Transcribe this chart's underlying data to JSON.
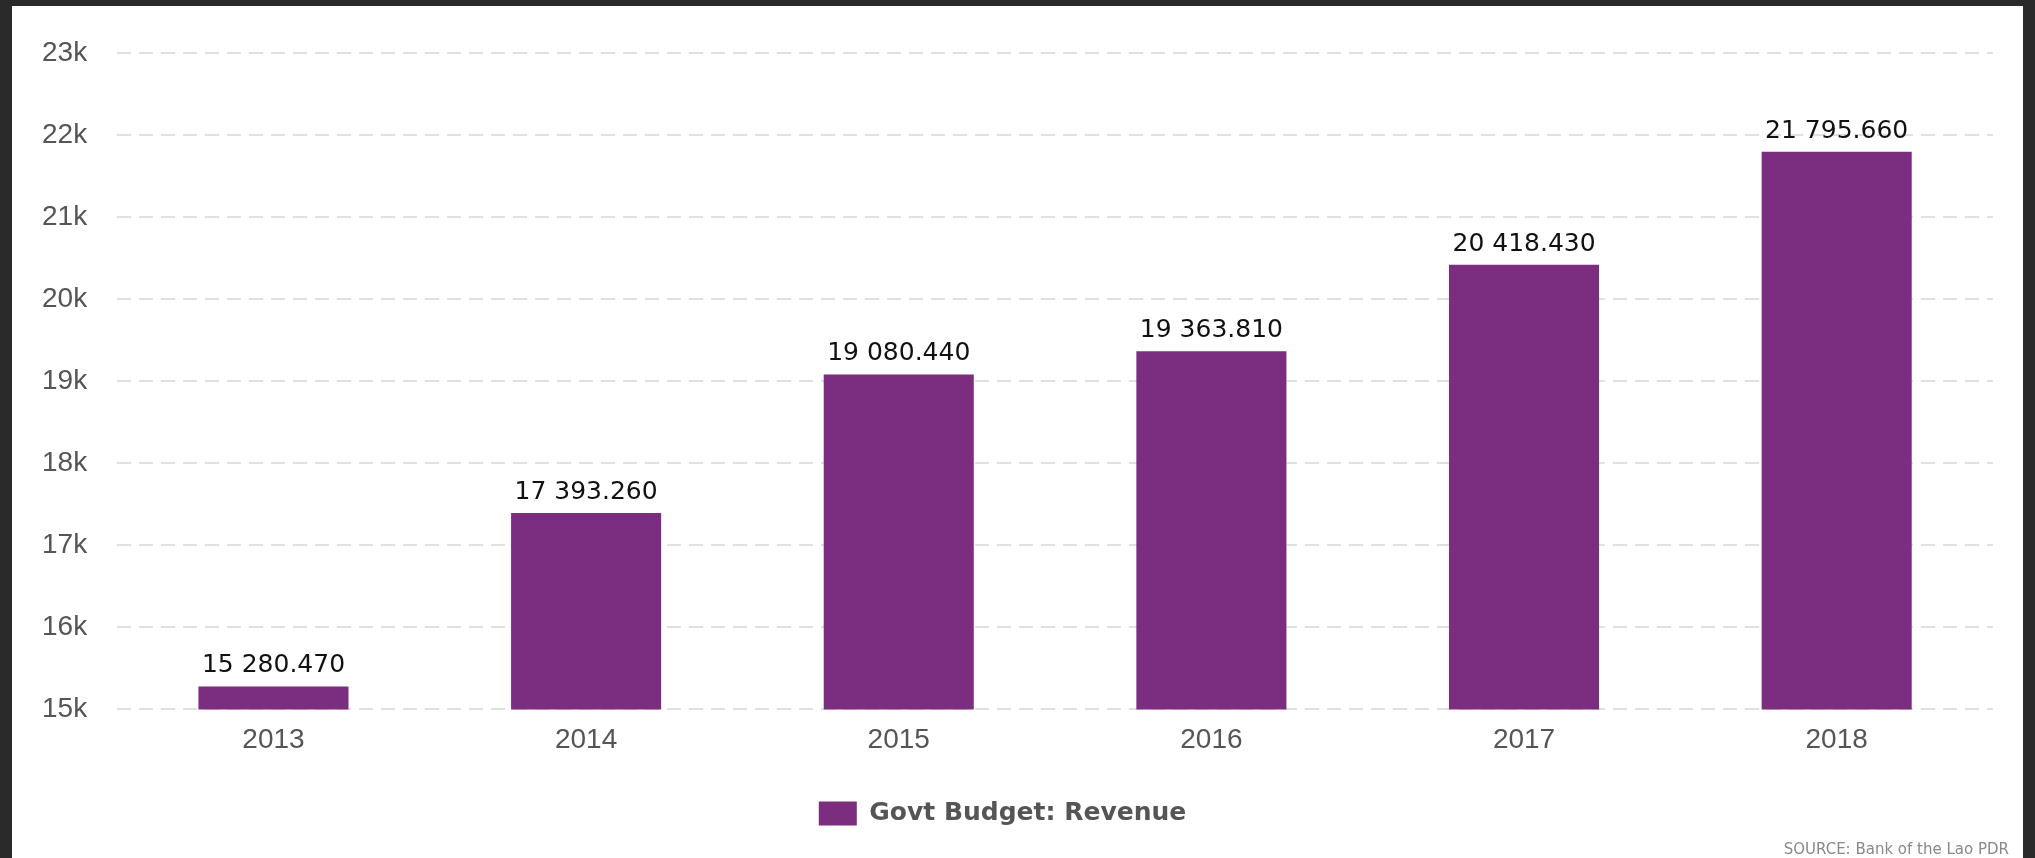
{
  "chart_data": {
    "type": "bar",
    "categories": [
      "2013",
      "2014",
      "2015",
      "2016",
      "2017",
      "2018"
    ],
    "series": [
      {
        "name": "Govt Budget: Revenue",
        "color": "#7b2d80",
        "values": [
          15280.47,
          17393.26,
          19080.44,
          19363.81,
          20418.43,
          21795.66
        ],
        "value_labels": [
          "15 280.470",
          "17 393.260",
          "19 080.440",
          "19 363.810",
          "20 418.430",
          "21 795.660"
        ]
      }
    ],
    "ylim": [
      15000,
      23000
    ],
    "yticks": [
      {
        "value": 15000,
        "label": "15k"
      },
      {
        "value": 16000,
        "label": "16k"
      },
      {
        "value": 17000,
        "label": "17k"
      },
      {
        "value": 18000,
        "label": "18k"
      },
      {
        "value": 19000,
        "label": "19k"
      },
      {
        "value": 20000,
        "label": "20k"
      },
      {
        "value": 21000,
        "label": "21k"
      },
      {
        "value": 22000,
        "label": "22k"
      },
      {
        "value": 23000,
        "label": "23k"
      }
    ],
    "grid": "y",
    "legend": "bottom",
    "annotations": [
      "SOURCE: Bank of the Lao PDR"
    ]
  }
}
